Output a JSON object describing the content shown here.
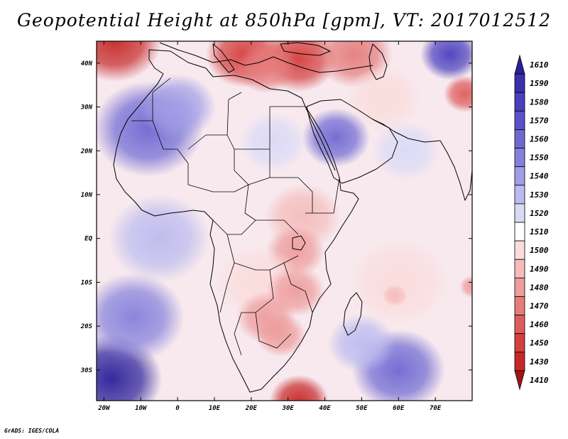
{
  "title": "Geopotential Height at 850hPa [gpm], VT: 2017012512",
  "credit": "GrADS: IGES/COLA",
  "map": {
    "lon_range": [
      -22,
      80
    ],
    "lat_range": [
      -37,
      45
    ],
    "lon_ticks": [
      {
        "value": -20,
        "label": "20W"
      },
      {
        "value": -10,
        "label": "10W"
      },
      {
        "value": 0,
        "label": "0"
      },
      {
        "value": 10,
        "label": "10E"
      },
      {
        "value": 20,
        "label": "20E"
      },
      {
        "value": 30,
        "label": "30E"
      },
      {
        "value": 40,
        "label": "40E"
      },
      {
        "value": 50,
        "label": "50E"
      },
      {
        "value": 60,
        "label": "60E"
      },
      {
        "value": 70,
        "label": "70E"
      }
    ],
    "lat_ticks": [
      {
        "value": 40,
        "label": "40N"
      },
      {
        "value": 30,
        "label": "30N"
      },
      {
        "value": 20,
        "label": "20N"
      },
      {
        "value": 10,
        "label": "10N"
      },
      {
        "value": 0,
        "label": "EQ"
      },
      {
        "value": -10,
        "label": "10S"
      },
      {
        "value": -20,
        "label": "20S"
      },
      {
        "value": -30,
        "label": "30S"
      }
    ]
  },
  "colorbar": {
    "levels": [
      {
        "label": "1610",
        "color": "#2b1f9a"
      },
      {
        "label": "1590",
        "color": "#3b2fae"
      },
      {
        "label": "1580",
        "color": "#4a3fbe"
      },
      {
        "label": "1570",
        "color": "#5a52c9"
      },
      {
        "label": "1560",
        "color": "#6e68d2"
      },
      {
        "label": "1550",
        "color": "#8580dc"
      },
      {
        "label": "1540",
        "color": "#a19ee6"
      },
      {
        "label": "1530",
        "color": "#bcbbef"
      },
      {
        "label": "1520",
        "color": "#dadaf7"
      },
      {
        "label": "1510",
        "color": "#ffffff"
      },
      {
        "label": "1500",
        "color": "#fbdcdc"
      },
      {
        "label": "1490",
        "color": "#f5bcbc"
      },
      {
        "label": "1480",
        "color": "#ee9c9c"
      },
      {
        "label": "1470",
        "color": "#e67c7c"
      },
      {
        "label": "1460",
        "color": "#de5c5c"
      },
      {
        "label": "1450",
        "color": "#d53f3f"
      },
      {
        "label": "1430",
        "color": "#c62828"
      },
      {
        "label": "1410",
        "color": "#a31515"
      }
    ]
  },
  "fields": [
    {
      "name": "north-atlantic-low",
      "lon": -17,
      "lat": 45,
      "level": 1430,
      "r": 11
    },
    {
      "name": "mediterranean-low",
      "lon": 18,
      "lat": 42,
      "level": 1450,
      "r": 9
    },
    {
      "name": "turkey-low",
      "lon": 33,
      "lat": 41,
      "level": 1440,
      "r": 9
    },
    {
      "name": "greece-low",
      "lon": 24,
      "lat": 39,
      "level": 1470,
      "r": 7
    },
    {
      "name": "caspian-low",
      "lon": 48,
      "lat": 42,
      "level": 1470,
      "r": 9
    },
    {
      "name": "himalaya-low",
      "lon": 78,
      "lat": 33,
      "level": 1460,
      "r": 5
    },
    {
      "name": "iran-trough",
      "lon": 56,
      "lat": 32,
      "level": 1500,
      "r": 9
    },
    {
      "name": "sahara-high",
      "lon": -8,
      "lat": 25,
      "level": 1555,
      "r": 13
    },
    {
      "name": "west-sahara-high",
      "lon": 0,
      "lat": 30,
      "level": 1540,
      "r": 9
    },
    {
      "name": "arabia-high",
      "lon": 43,
      "lat": 23,
      "level": 1562,
      "r": 8
    },
    {
      "name": "east-sahara-ridge",
      "lon": 26,
      "lat": 22,
      "level": 1520,
      "r": 8
    },
    {
      "name": "india-high",
      "lon": 62,
      "lat": 20,
      "level": 1520,
      "r": 8
    },
    {
      "name": "east-africa-low",
      "lon": 34,
      "lat": 5,
      "level": 1488,
      "r": 9
    },
    {
      "name": "lake-victoria-low",
      "lon": 32,
      "lat": -3,
      "level": 1484,
      "r": 7
    },
    {
      "name": "congo-trough",
      "lon": 22,
      "lat": -10,
      "level": 1495,
      "r": 10
    },
    {
      "name": "tanzania-low",
      "lon": 32,
      "lat": -12,
      "level": 1482,
      "r": 7
    },
    {
      "name": "kalahari-low",
      "lon": 24,
      "lat": -18,
      "level": 1480,
      "r": 7
    },
    {
      "name": "highveld-low",
      "lon": 28,
      "lat": -22,
      "level": 1478,
      "r": 6
    },
    {
      "name": "cape-low",
      "lon": 33,
      "lat": -37,
      "level": 1430,
      "r": 7
    },
    {
      "name": "indian-ocean-trough",
      "lon": 60,
      "lat": -10,
      "level": 1497,
      "r": 12
    },
    {
      "name": "mascarene-low",
      "lon": 59,
      "lat": -13,
      "level": 1486,
      "r": 3
    },
    {
      "name": "ocean-low-east",
      "lon": 80,
      "lat": -11,
      "level": 1482,
      "r": 3
    },
    {
      "name": "gulf-of-guinea-ridge",
      "lon": -5,
      "lat": 0,
      "level": 1525,
      "r": 12
    },
    {
      "name": "atlantic-high-south",
      "lon": -18,
      "lat": -32,
      "level": 1600,
      "r": 12
    },
    {
      "name": "atlantic-ridge",
      "lon": -12,
      "lat": -18,
      "level": 1545,
      "r": 12
    },
    {
      "name": "indian-ocean-high",
      "lon": 60,
      "lat": -30,
      "level": 1560,
      "r": 11
    },
    {
      "name": "indian-ocean-ridge",
      "lon": 50,
      "lat": -24,
      "level": 1530,
      "r": 8
    },
    {
      "name": "himalaya-high",
      "lon": 74,
      "lat": 42,
      "level": 1580,
      "r": 7
    }
  ]
}
